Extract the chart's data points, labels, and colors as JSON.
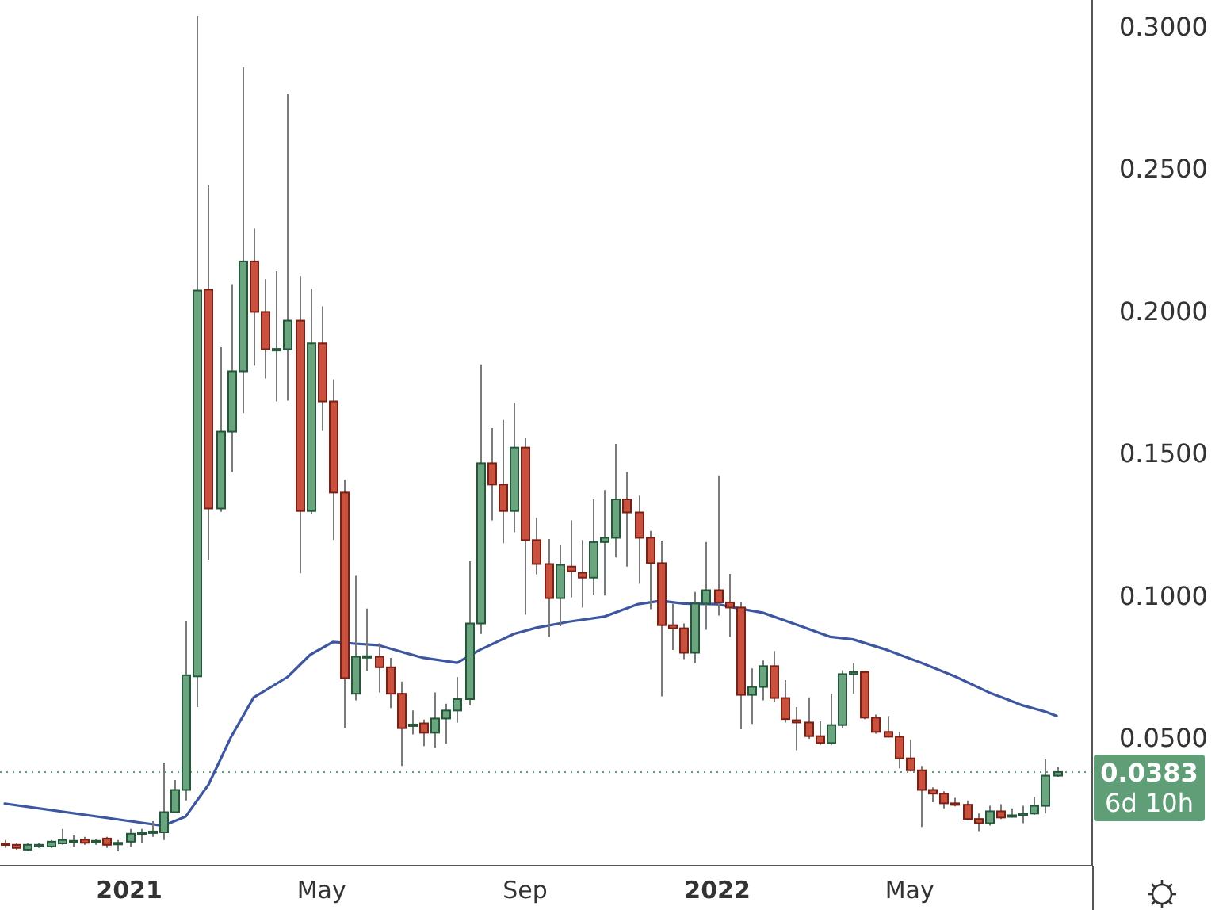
{
  "chart_data": {
    "type": "candlestick",
    "x": [
      "2020-10-19",
      "2020-10-26",
      "2020-11-02",
      "2020-11-09",
      "2020-11-16",
      "2020-11-23",
      "2020-11-30",
      "2020-12-07",
      "2020-12-14",
      "2020-12-21",
      "2020-12-28",
      "2021-01-04",
      "2021-01-11",
      "2021-01-18",
      "2021-01-25",
      "2021-02-01",
      "2021-02-08",
      "2021-02-15",
      "2021-02-22",
      "2021-03-01",
      "2021-03-08",
      "2021-03-15",
      "2021-03-22",
      "2021-03-29",
      "2021-04-05",
      "2021-04-12",
      "2021-04-19",
      "2021-04-26",
      "2021-05-03",
      "2021-05-10",
      "2021-05-17",
      "2021-05-24",
      "2021-05-31",
      "2021-06-07",
      "2021-06-14",
      "2021-06-21",
      "2021-06-28",
      "2021-07-05",
      "2021-07-12",
      "2021-07-19",
      "2021-07-26",
      "2021-08-02",
      "2021-08-09",
      "2021-08-16",
      "2021-08-23",
      "2021-08-30",
      "2021-09-06",
      "2021-09-13",
      "2021-09-20",
      "2021-09-27",
      "2021-10-04",
      "2021-10-11",
      "2021-10-18",
      "2021-10-25",
      "2021-11-01",
      "2021-11-08",
      "2021-11-15",
      "2021-11-22",
      "2021-11-29",
      "2021-12-06",
      "2021-12-13",
      "2021-12-20",
      "2021-12-27",
      "2022-01-03",
      "2022-01-10",
      "2022-01-17",
      "2022-01-24",
      "2022-01-31",
      "2022-02-07",
      "2022-02-14",
      "2022-02-21",
      "2022-02-28",
      "2022-03-07",
      "2022-03-14",
      "2022-03-21",
      "2022-03-28",
      "2022-04-04",
      "2022-04-11",
      "2022-04-18",
      "2022-04-25",
      "2022-05-02",
      "2022-05-09",
      "2022-05-16",
      "2022-05-23",
      "2022-05-30",
      "2022-06-06",
      "2022-06-13",
      "2022-06-20",
      "2022-06-27",
      "2022-07-04",
      "2022-07-11",
      "2022-07-18",
      "2022-07-25",
      "2022-08-01"
    ],
    "ohlc": [
      [
        0.0132,
        0.0144,
        0.0116,
        0.0127
      ],
      [
        0.0127,
        0.0132,
        0.011,
        0.0116
      ],
      [
        0.011,
        0.0132,
        0.0105,
        0.0127
      ],
      [
        0.0121,
        0.0132,
        0.0116,
        0.0127
      ],
      [
        0.0121,
        0.0144,
        0.0116,
        0.0138
      ],
      [
        0.0132,
        0.0183,
        0.0127,
        0.0144
      ],
      [
        0.0138,
        0.016,
        0.0121,
        0.0141
      ],
      [
        0.0145,
        0.0155,
        0.0127,
        0.0134
      ],
      [
        0.0138,
        0.0149,
        0.0127,
        0.0141
      ],
      [
        0.0149,
        0.0155,
        0.0116,
        0.0127
      ],
      [
        0.0132,
        0.0144,
        0.0105,
        0.0134
      ],
      [
        0.0138,
        0.0183,
        0.0121,
        0.0166
      ],
      [
        0.0169,
        0.0183,
        0.0132,
        0.0171
      ],
      [
        0.0171,
        0.021,
        0.0155,
        0.0174
      ],
      [
        0.0171,
        0.0416,
        0.0144,
        0.0242
      ],
      [
        0.0242,
        0.0355,
        0.0238,
        0.032
      ],
      [
        0.032,
        0.0912,
        0.0283,
        0.0723
      ],
      [
        0.0719,
        0.304,
        0.0611,
        0.2075
      ],
      [
        0.2078,
        0.2444,
        0.1129,
        0.1309
      ],
      [
        0.1309,
        0.1876,
        0.1297,
        0.1579
      ],
      [
        0.1579,
        0.2097,
        0.1437,
        0.1791
      ],
      [
        0.1791,
        0.286,
        0.1644,
        0.2177
      ],
      [
        0.2177,
        0.2292,
        0.1811,
        0.2
      ],
      [
        0.2,
        0.2115,
        0.1766,
        0.1869
      ],
      [
        0.1869,
        0.2143,
        0.1685,
        0.187
      ],
      [
        0.1869,
        0.2765,
        0.1688,
        0.1969
      ],
      [
        0.1969,
        0.2126,
        0.1081,
        0.13
      ],
      [
        0.13,
        0.2082,
        0.1291,
        0.1889
      ],
      [
        0.1889,
        0.2019,
        0.1582,
        0.1685
      ],
      [
        0.1685,
        0.1763,
        0.1198,
        0.1365
      ],
      [
        0.1365,
        0.141,
        0.0537,
        0.0713
      ],
      [
        0.0658,
        0.1072,
        0.0635,
        0.0788
      ],
      [
        0.0788,
        0.0957,
        0.0738,
        0.079
      ],
      [
        0.0788,
        0.0836,
        0.0663,
        0.0751
      ],
      [
        0.0751,
        0.0784,
        0.0608,
        0.0658
      ],
      [
        0.0658,
        0.0701,
        0.0404,
        0.0537
      ],
      [
        0.0545,
        0.0599,
        0.0515,
        0.055
      ],
      [
        0.0554,
        0.0567,
        0.0474,
        0.0521
      ],
      [
        0.0521,
        0.0663,
        0.0468,
        0.0571
      ],
      [
        0.0571,
        0.0623,
        0.0482,
        0.0599
      ],
      [
        0.0599,
        0.0716,
        0.0557,
        0.0639
      ],
      [
        0.0639,
        0.1124,
        0.0617,
        0.0905
      ],
      [
        0.0905,
        0.1815,
        0.0868,
        0.1468
      ],
      [
        0.1468,
        0.1592,
        0.1267,
        0.1393
      ],
      [
        0.1393,
        0.162,
        0.1187,
        0.13
      ],
      [
        0.13,
        0.1681,
        0.1226,
        0.1523
      ],
      [
        0.1523,
        0.1558,
        0.0936,
        0.1198
      ],
      [
        0.1198,
        0.1276,
        0.1078,
        0.1114
      ],
      [
        0.1114,
        0.1202,
        0.0858,
        0.0994
      ],
      [
        0.0994,
        0.118,
        0.0895,
        0.1111
      ],
      [
        0.1105,
        0.1267,
        0.0997,
        0.1089
      ],
      [
        0.1083,
        0.1198,
        0.0961,
        0.1066
      ],
      [
        0.1066,
        0.1341,
        0.1007,
        0.1191
      ],
      [
        0.1191,
        0.1374,
        0.1003,
        0.1206
      ],
      [
        0.1206,
        0.1536,
        0.1137,
        0.1341
      ],
      [
        0.1341,
        0.1437,
        0.1105,
        0.1295
      ],
      [
        0.1295,
        0.1354,
        0.1044,
        0.1206
      ],
      [
        0.1206,
        0.123,
        0.0955,
        0.1117
      ],
      [
        0.1117,
        0.1196,
        0.0649,
        0.0899
      ],
      [
        0.0899,
        0.0975,
        0.0812,
        0.0888
      ],
      [
        0.0888,
        0.0905,
        0.078,
        0.0802
      ],
      [
        0.0802,
        0.1016,
        0.0766,
        0.0975
      ],
      [
        0.0975,
        0.1191,
        0.0883,
        0.1022
      ],
      [
        0.1022,
        0.1425,
        0.0933,
        0.0979
      ],
      [
        0.0979,
        0.1079,
        0.0858,
        0.0961
      ],
      [
        0.0961,
        0.0979,
        0.0533,
        0.0654
      ],
      [
        0.0654,
        0.0747,
        0.0552,
        0.0682
      ],
      [
        0.0682,
        0.0775,
        0.0635,
        0.0755
      ],
      [
        0.0755,
        0.0808,
        0.0628,
        0.0643
      ],
      [
        0.0643,
        0.0706,
        0.0557,
        0.0569
      ],
      [
        0.0565,
        0.0611,
        0.0459,
        0.0557
      ],
      [
        0.0557,
        0.0645,
        0.05,
        0.0509
      ],
      [
        0.0509,
        0.0561,
        0.0478,
        0.0485
      ],
      [
        0.0485,
        0.0658,
        0.0478,
        0.0548
      ],
      [
        0.0548,
        0.0741,
        0.0537,
        0.0727
      ],
      [
        0.0727,
        0.0766,
        0.0658,
        0.0734
      ],
      [
        0.0734,
        0.0738,
        0.0569,
        0.0574
      ],
      [
        0.0574,
        0.0585,
        0.0518,
        0.0524
      ],
      [
        0.0524,
        0.058,
        0.0504,
        0.0507
      ],
      [
        0.0507,
        0.0524,
        0.0396,
        0.0431
      ],
      [
        0.0431,
        0.0496,
        0.0385,
        0.0389
      ],
      [
        0.0389,
        0.0404,
        0.019,
        0.032
      ],
      [
        0.032,
        0.0329,
        0.0277,
        0.0307
      ],
      [
        0.0307,
        0.0315,
        0.0255,
        0.0273
      ],
      [
        0.0273,
        0.0292,
        0.0262,
        0.0268
      ],
      [
        0.0268,
        0.0283,
        0.0214,
        0.0218
      ],
      [
        0.0218,
        0.0237,
        0.0175,
        0.0203
      ],
      [
        0.0203,
        0.0264,
        0.0195,
        0.0245
      ],
      [
        0.0245,
        0.027,
        0.0218,
        0.0223
      ],
      [
        0.0229,
        0.0255,
        0.0223,
        0.0231
      ],
      [
        0.0231,
        0.0264,
        0.0203,
        0.0237
      ],
      [
        0.0237,
        0.0296,
        0.0233,
        0.0264
      ],
      [
        0.0264,
        0.0428,
        0.0237,
        0.037
      ],
      [
        0.037,
        0.04,
        0.0366,
        0.0383
      ]
    ],
    "series": [
      {
        "type": "line",
        "color": "#3d56a0",
        "x": [
          "2020-10-19",
          "2021-01-25",
          "2021-02-08",
          "2021-02-15",
          "2021-02-22",
          "2021-03-08",
          "2021-03-22",
          "2021-04-12",
          "2021-04-26",
          "2021-05-10",
          "2021-05-24",
          "2021-06-07",
          "2021-06-21",
          "2021-07-05",
          "2021-07-26",
          "2021-08-09",
          "2021-08-30",
          "2021-09-13",
          "2021-10-04",
          "2021-10-25",
          "2021-11-15",
          "2021-11-29",
          "2021-12-13",
          "2022-01-03",
          "2022-01-17",
          "2022-01-31",
          "2022-02-21",
          "2022-03-14",
          "2022-03-28",
          "2022-04-18",
          "2022-05-09",
          "2022-05-30",
          "2022-06-20",
          "2022-07-11",
          "2022-07-25",
          "2022-08-01"
        ],
        "values": [
          0.0272,
          0.0194,
          0.0227,
          0.0283,
          0.0338,
          0.0506,
          0.0645,
          0.0717,
          0.0795,
          0.084,
          0.0834,
          0.0829,
          0.0806,
          0.0784,
          0.0767,
          0.0812,
          0.0868,
          0.089,
          0.0912,
          0.0929,
          0.0973,
          0.0985,
          0.0975,
          0.0973,
          0.0957,
          0.0943,
          0.0901,
          0.0858,
          0.0849,
          0.0812,
          0.0767,
          0.0719,
          0.0663,
          0.0617,
          0.0595,
          0.058
        ]
      }
    ],
    "xlim": [
      "2020-10-16",
      "2022-08-23"
    ],
    "xticks": [
      {
        "value": "2021-01-04",
        "label": "2021"
      },
      {
        "value": "2021-05-03",
        "label": "May"
      },
      {
        "value": "2021-09-06",
        "label": "Sep"
      },
      {
        "value": "2022-01-03",
        "label": "2022"
      },
      {
        "value": "2022-05-02",
        "label": "May"
      }
    ],
    "ylim": [
      0.0054,
      0.3096
    ],
    "yticks": [
      {
        "value": 0.05,
        "label": "0.0500"
      },
      {
        "value": 0.1,
        "label": "0.1000"
      },
      {
        "value": 0.15,
        "label": "0.1500"
      },
      {
        "value": 0.2,
        "label": "0.2000"
      },
      {
        "value": 0.25,
        "label": "0.2500"
      },
      {
        "value": 0.3,
        "label": "0.3000"
      }
    ],
    "ref_lines": [
      {
        "axis": "y",
        "value": 0.0383,
        "label": "0.0383",
        "color": "#5f9e76",
        "line_style": "dotted"
      }
    ],
    "annotations": [
      "6d 10h"
    ],
    "grid": false
  }
}
